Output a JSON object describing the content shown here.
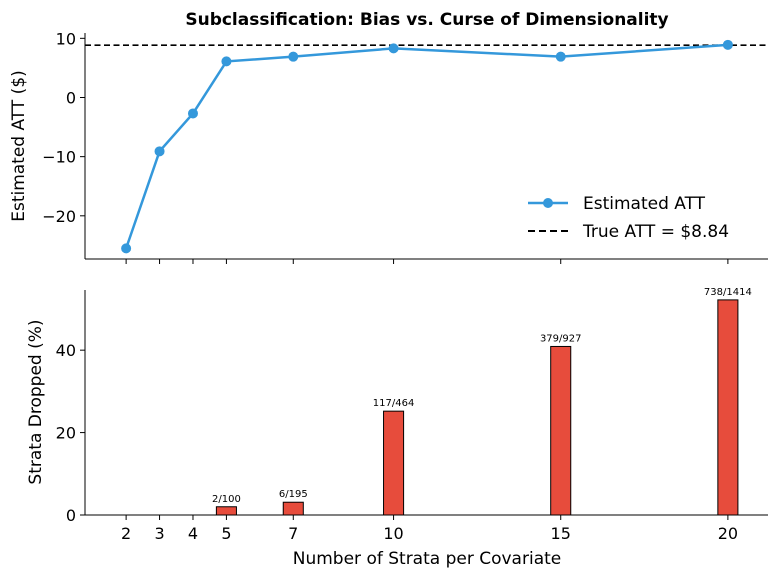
{
  "chart_data": [
    {
      "type": "line",
      "title": "Subclassification: Bias vs. Curse of Dimensionality",
      "xlabel": "",
      "ylabel": "Estimated ATT ($)",
      "x": [
        2,
        3,
        4,
        5,
        7,
        10,
        15,
        20
      ],
      "series": [
        {
          "name": "Estimated ATT",
          "values": [
            -25.5,
            -9.1,
            -2.7,
            6.1,
            6.9,
            8.3,
            6.9,
            8.9
          ],
          "color": "#3498db"
        }
      ],
      "reference_line": {
        "name": "True ATT = $8.84",
        "value": 8.84,
        "color": "#000000",
        "style": "dashed"
      },
      "xlim": [
        0.77,
        21.2
      ],
      "ylim": [
        -27.3,
        10.9
      ],
      "yticks": [
        10,
        0,
        -10,
        -20
      ],
      "xticks": [
        2,
        3,
        4,
        5,
        7,
        10,
        15,
        20
      ],
      "grid": false,
      "legend": "lower-right"
    },
    {
      "type": "bar",
      "xlabel": "Number of Strata per Covariate",
      "ylabel": "Strata Dropped (%)",
      "categories": [
        2,
        3,
        4,
        5,
        7,
        10,
        15,
        20
      ],
      "values": [
        0,
        0,
        0,
        2.0,
        3.1,
        25.2,
        40.9,
        52.2
      ],
      "data_labels": [
        "",
        "",
        "",
        "2/100",
        "6/195",
        "117/464",
        "379/927",
        "738/1414"
      ],
      "bar_color": "#e74c3c",
      "edge_color": "#000000",
      "xlim": [
        0.77,
        21.2
      ],
      "ylim": [
        0,
        54.6
      ],
      "yticks": [
        0,
        20,
        40
      ],
      "xticks": [
        2,
        3,
        4,
        5,
        7,
        10,
        15,
        20
      ],
      "grid": false
    }
  ]
}
